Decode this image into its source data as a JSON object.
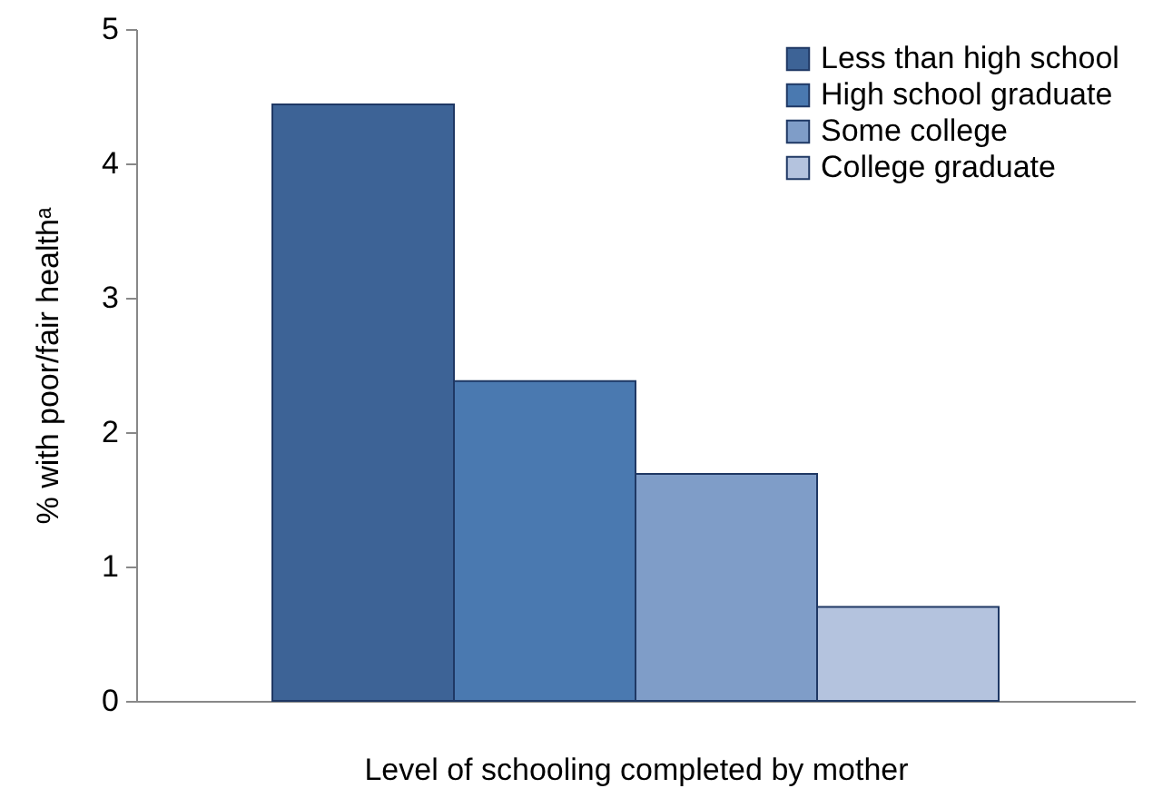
{
  "chart_data": {
    "type": "bar",
    "xlabel": "Level of schooling completed by mother",
    "ylabel": "% with poor/fair healthᵃ",
    "categories": [
      null
    ],
    "series": [
      {
        "name": "Less than high school",
        "color": "#3d6396",
        "values": [
          4.44
        ]
      },
      {
        "name": "High school graduate",
        "color": "#4a79b0",
        "values": [
          2.38
        ]
      },
      {
        "name": "Some college",
        "color": "#7f9dc8",
        "values": [
          1.69
        ]
      },
      {
        "name": "College graduate",
        "color": "#b4c3de",
        "values": [
          0.7
        ]
      }
    ],
    "ylim": [
      0,
      5
    ],
    "yticks": [
      0,
      1,
      2,
      3,
      4,
      5
    ],
    "grid": false,
    "legend": "top right",
    "tick_labels": "y"
  }
}
